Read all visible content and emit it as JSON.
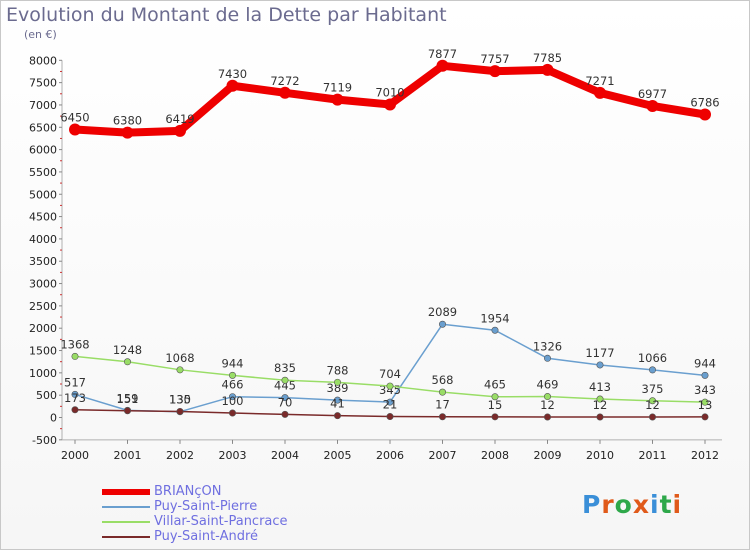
{
  "title": "Evolution du Montant de la Dette par Habitant",
  "subtitle": "(en €)",
  "logo": {
    "text": "Proxiti",
    "letters": [
      "P",
      "r",
      "o",
      "x",
      "i",
      "t",
      "i"
    ],
    "colors": [
      "#3a8fd8",
      "#e05a1a",
      "#2ea84a",
      "#e05a1a",
      "#3a8fd8",
      "#2ea84a",
      "#e05a1a"
    ]
  },
  "chart_data": {
    "type": "line",
    "x": [
      "2000",
      "2001",
      "2002",
      "2003",
      "2004",
      "2005",
      "2006",
      "2007",
      "2008",
      "2009",
      "2010",
      "2011",
      "2012"
    ],
    "ylim": [
      -500,
      8000
    ],
    "yticks": [
      -500,
      0,
      500,
      1000,
      1500,
      2000,
      2500,
      3000,
      3500,
      4000,
      4500,
      5000,
      5500,
      6000,
      6500,
      7000,
      7500,
      8000
    ],
    "grid": false,
    "legend_position": "bottom-left",
    "series": [
      {
        "name": "BRIANçON",
        "color": "#ee0000",
        "values": [
          6450,
          6380,
          6419,
          7430,
          7272,
          7119,
          7010,
          7877,
          7757,
          7785,
          7271,
          6977,
          6786
        ]
      },
      {
        "name": "Puy-Saint-Pierre",
        "color": "#6a9fcf",
        "values": [
          517,
          159,
          130,
          466,
          445,
          389,
          345,
          2089,
          1954,
          1326,
          1177,
          1066,
          944
        ]
      },
      {
        "name": "Villar-Saint-Pancrace",
        "color": "#99dd66",
        "values": [
          1368,
          1248,
          1068,
          944,
          835,
          788,
          704,
          568,
          465,
          469,
          413,
          375,
          343
        ]
      },
      {
        "name": "Puy-Saint-André",
        "color": "#7a2a2a",
        "values": [
          173,
          151,
          135,
          100,
          70,
          41,
          21,
          17,
          15,
          12,
          12,
          12,
          13
        ]
      }
    ]
  }
}
